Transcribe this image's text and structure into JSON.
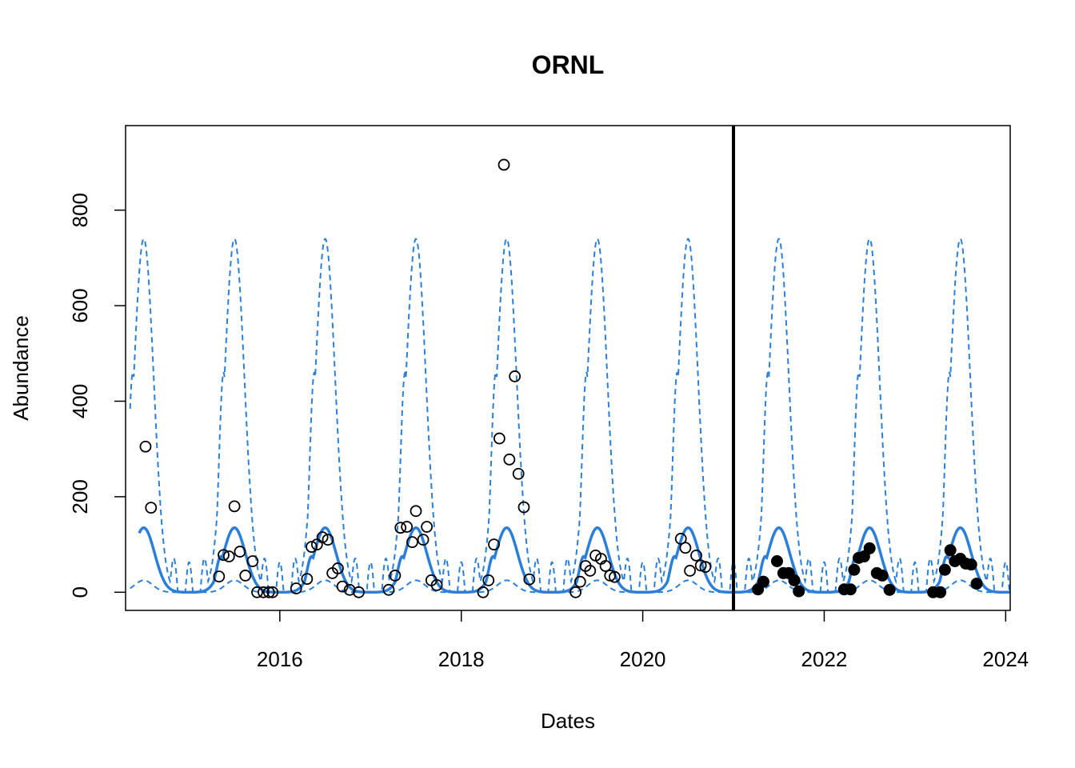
{
  "chart_data": {
    "type": "line",
    "title": "ORNL",
    "xlabel": "Dates",
    "ylabel": "Abundance",
    "xlim": [
      2014.3,
      2024.05
    ],
    "ylim": [
      -38,
      977
    ],
    "x_ticks": [
      2016,
      2018,
      2020,
      2022,
      2024
    ],
    "y_ticks": [
      0,
      200,
      400,
      600,
      800
    ],
    "forecast_start": 2021.0,
    "colors": {
      "model": "#2C7FD8",
      "points": "#000000",
      "divider": "#000000"
    },
    "series": [
      {
        "style": "median-solid",
        "seasonal": {
          "start": 2014.45,
          "end": 2024.05,
          "peak_offset": 0.5,
          "width": 0.12,
          "peak": 135,
          "base": 0,
          "shoulder_offset": 0.35,
          "shoulder": 75
        }
      },
      {
        "style": "upper-dashed",
        "seasonal": {
          "start": 2014.35,
          "end": 2024.05,
          "peak_offset": 0.5,
          "width": 0.11,
          "peak": 740,
          "base": 0,
          "shoulder_offset": 0.38,
          "shoulder": 460,
          "winter_spike": 70
        }
      },
      {
        "style": "lower-dashed",
        "seasonal": {
          "start": 2014.35,
          "end": 2024.05,
          "peak_offset": 0.5,
          "width": 0.1,
          "peak": 25,
          "base": 0
        }
      }
    ],
    "observed": [
      [
        2014.52,
        305
      ],
      [
        2014.58,
        177
      ],
      [
        2015.33,
        33
      ],
      [
        2015.38,
        78
      ],
      [
        2015.44,
        75
      ],
      [
        2015.5,
        180
      ],
      [
        2015.56,
        85
      ],
      [
        2015.62,
        35
      ],
      [
        2015.7,
        65
      ],
      [
        2015.75,
        0
      ],
      [
        2015.82,
        0
      ],
      [
        2015.88,
        0
      ],
      [
        2015.92,
        0
      ],
      [
        2016.18,
        8
      ],
      [
        2016.3,
        28
      ],
      [
        2016.35,
        95
      ],
      [
        2016.41,
        100
      ],
      [
        2016.47,
        115
      ],
      [
        2016.53,
        110
      ],
      [
        2016.58,
        40
      ],
      [
        2016.64,
        50
      ],
      [
        2016.69,
        12
      ],
      [
        2016.77,
        5
      ],
      [
        2016.87,
        0
      ],
      [
        2017.2,
        5
      ],
      [
        2017.27,
        35
      ],
      [
        2017.33,
        135
      ],
      [
        2017.4,
        137
      ],
      [
        2017.46,
        105
      ],
      [
        2017.5,
        170
      ],
      [
        2017.58,
        110
      ],
      [
        2017.62,
        137
      ],
      [
        2017.67,
        25
      ],
      [
        2017.73,
        15
      ],
      [
        2018.24,
        0
      ],
      [
        2018.3,
        25
      ],
      [
        2018.36,
        100
      ],
      [
        2018.42,
        322
      ],
      [
        2018.47,
        895
      ],
      [
        2018.53,
        278
      ],
      [
        2018.59,
        452
      ],
      [
        2018.63,
        248
      ],
      [
        2018.69,
        178
      ],
      [
        2018.75,
        27
      ],
      [
        2019.26,
        0
      ],
      [
        2019.31,
        22
      ],
      [
        2019.37,
        55
      ],
      [
        2019.42,
        45
      ],
      [
        2019.48,
        77
      ],
      [
        2019.54,
        70
      ],
      [
        2019.59,
        55
      ],
      [
        2019.64,
        35
      ],
      [
        2019.69,
        32
      ],
      [
        2020.42,
        112
      ],
      [
        2020.47,
        93
      ],
      [
        2020.52,
        45
      ],
      [
        2020.59,
        77
      ],
      [
        2020.64,
        56
      ],
      [
        2020.69,
        53
      ]
    ],
    "forecast_observed": [
      [
        2021.27,
        6
      ],
      [
        2021.33,
        22
      ],
      [
        2021.48,
        65
      ],
      [
        2021.55,
        40
      ],
      [
        2021.61,
        40
      ],
      [
        2021.67,
        25
      ],
      [
        2021.72,
        2
      ],
      [
        2022.22,
        6
      ],
      [
        2022.29,
        6
      ],
      [
        2022.33,
        47
      ],
      [
        2022.38,
        72
      ],
      [
        2022.44,
        75
      ],
      [
        2022.5,
        92
      ],
      [
        2022.58,
        40
      ],
      [
        2022.64,
        35
      ],
      [
        2022.72,
        5
      ],
      [
        2023.2,
        0
      ],
      [
        2023.28,
        0
      ],
      [
        2023.33,
        47
      ],
      [
        2023.39,
        88
      ],
      [
        2023.44,
        65
      ],
      [
        2023.5,
        70
      ],
      [
        2023.56,
        60
      ],
      [
        2023.62,
        58
      ],
      [
        2023.68,
        18
      ]
    ]
  }
}
